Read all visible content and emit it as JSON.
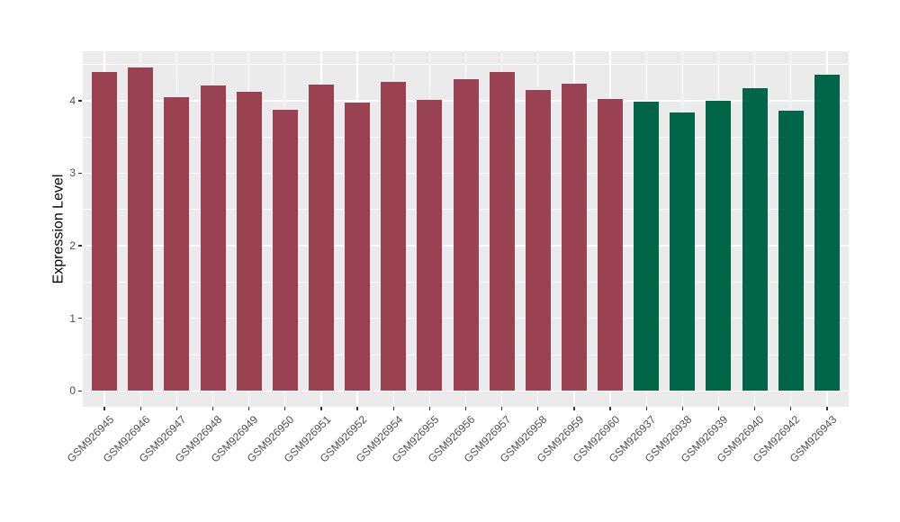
{
  "chart_data": {
    "type": "bar",
    "ylabel": "Expression Level",
    "ylim": [
      -0.22,
      4.68
    ],
    "yticks": [
      0,
      1,
      2,
      3,
      4
    ],
    "yticks_minor": [
      0.5,
      1.5,
      2.5,
      3.5,
      4.5
    ],
    "grid": "on",
    "legend": "none",
    "colors": {
      "figure_background": "#ffffff",
      "panel_background": "#ebebeb",
      "grid": "#ffffff",
      "axis_text": "#4d4d4d",
      "axis_title": "#000000",
      "tick_mark": "#333333",
      "group1": "#9b4252",
      "group2": "#006647"
    },
    "bars": [
      {
        "label": "GSM926945",
        "value": 4.39,
        "group": "group1"
      },
      {
        "label": "GSM926946",
        "value": 4.46,
        "group": "group1"
      },
      {
        "label": "GSM926947",
        "value": 4.05,
        "group": "group1"
      },
      {
        "label": "GSM926948",
        "value": 4.21,
        "group": "group1"
      },
      {
        "label": "GSM926949",
        "value": 4.12,
        "group": "group1"
      },
      {
        "label": "GSM926950",
        "value": 3.87,
        "group": "group1"
      },
      {
        "label": "GSM926951",
        "value": 4.22,
        "group": "group1"
      },
      {
        "label": "GSM926952",
        "value": 3.97,
        "group": "group1"
      },
      {
        "label": "GSM926954",
        "value": 4.26,
        "group": "group1"
      },
      {
        "label": "GSM926955",
        "value": 4.01,
        "group": "group1"
      },
      {
        "label": "GSM926956",
        "value": 4.29,
        "group": "group1"
      },
      {
        "label": "GSM926957",
        "value": 4.4,
        "group": "group1"
      },
      {
        "label": "GSM926958",
        "value": 4.15,
        "group": "group1"
      },
      {
        "label": "GSM926959",
        "value": 4.23,
        "group": "group1"
      },
      {
        "label": "GSM926960",
        "value": 4.02,
        "group": "group1"
      },
      {
        "label": "GSM926937",
        "value": 3.98,
        "group": "group2"
      },
      {
        "label": "GSM926938",
        "value": 3.84,
        "group": "group2"
      },
      {
        "label": "GSM926939",
        "value": 4.0,
        "group": "group2"
      },
      {
        "label": "GSM926940",
        "value": 4.17,
        "group": "group2"
      },
      {
        "label": "GSM926942",
        "value": 3.86,
        "group": "group2"
      },
      {
        "label": "GSM926943",
        "value": 4.36,
        "group": "group2"
      }
    ]
  }
}
